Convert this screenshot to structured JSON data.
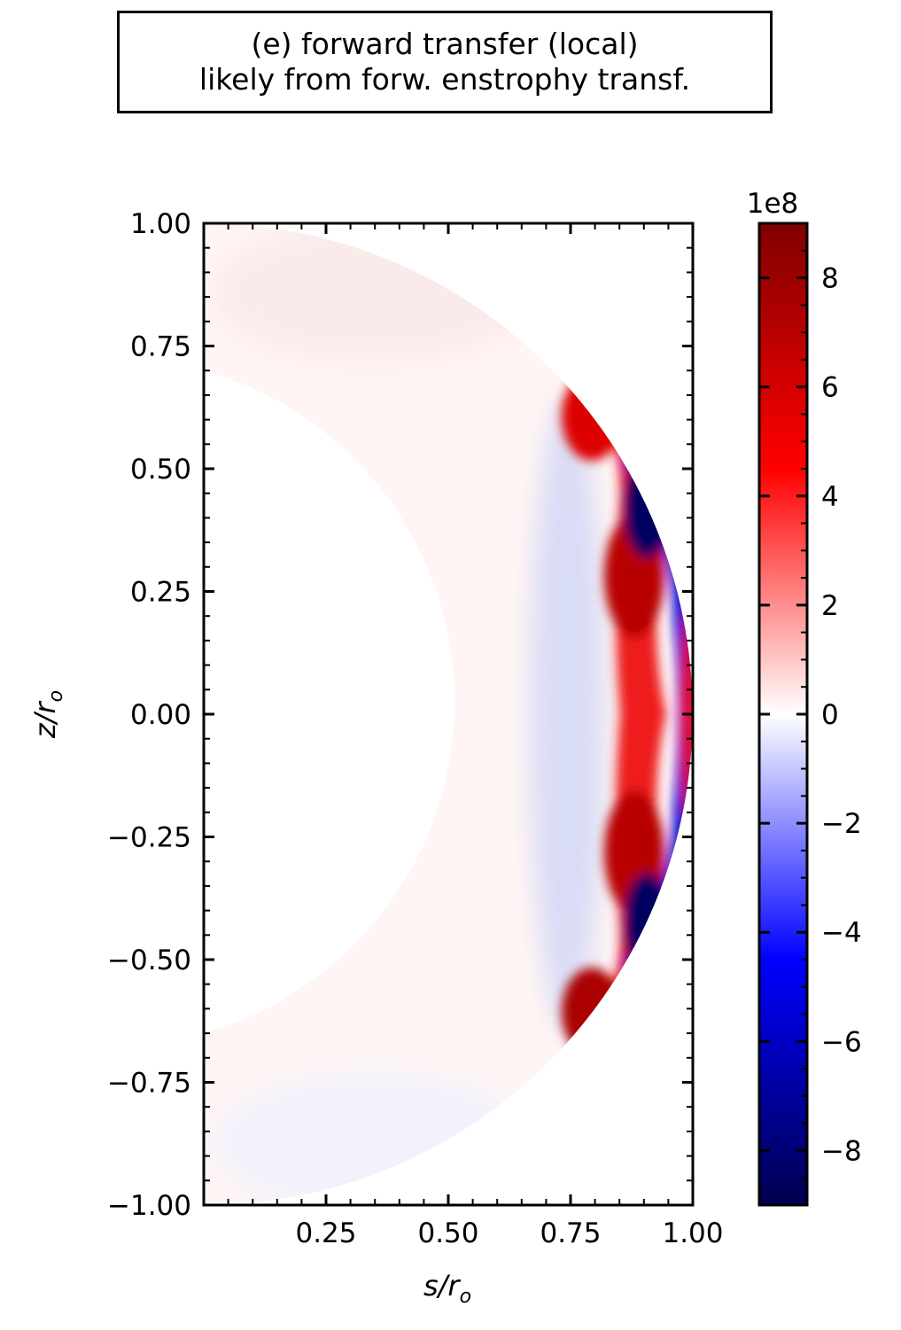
{
  "title": {
    "line1": "(e) forward transfer (local)",
    "line2": "likely from forw. enstrophy transf."
  },
  "chart_data": {
    "type": "heatmap",
    "xlabel": "s/r_o",
    "ylabel": "z/r_o",
    "xlim": [
      0.0,
      1.0
    ],
    "ylim": [
      -1.0,
      1.0
    ],
    "x_ticks": [
      "0.25",
      "0.50",
      "0.75",
      "1.00"
    ],
    "y_ticks": [
      "1.00",
      "0.75",
      "0.50",
      "0.25",
      "0.00",
      "−0.25",
      "−0.50",
      "−0.75",
      "−1.00"
    ],
    "x_tick_values": [
      0.25,
      0.5,
      0.75,
      1.0
    ],
    "y_tick_values": [
      1.0,
      0.75,
      0.5,
      0.25,
      0.0,
      -0.25,
      -0.5,
      -0.75,
      -1.0
    ],
    "domain": {
      "shape": "meridional spherical shell half-section",
      "inner_radius": 0.7,
      "outer_radius": 1.0
    },
    "colorbar": {
      "cmap": "seismic",
      "range": [
        -9,
        9
      ],
      "multiplier": "1e8",
      "tick_labels": [
        "8",
        "6",
        "4",
        "2",
        "0",
        "−2",
        "−4",
        "−6",
        "−8"
      ],
      "tick_values": [
        8,
        6,
        4,
        2,
        0,
        -2,
        -4,
        -6,
        -8
      ]
    },
    "features": [
      {
        "region": "s≈0.75–0.9, |z|≈0.1–0.7",
        "sign": "positive",
        "approx_value_1e8": 7
      },
      {
        "region": "near outer boundary s≈0.9–0.98, |z|≈0.2–0.5",
        "sign": "negative",
        "approx_value_1e8": -9
      },
      {
        "region": "s≈0.7–0.75 along tangent cylinder",
        "sign": "negative",
        "approx_value_1e8": -1
      },
      {
        "region": "high latitudes |z|>0.7",
        "sign": "near zero",
        "approx_value_1e8": 0
      }
    ]
  },
  "colors": {
    "positive_max": "#800000",
    "positive": "#ff0000",
    "zero": "#ffffff",
    "negative": "#0000ff",
    "negative_max": "#00004d"
  }
}
